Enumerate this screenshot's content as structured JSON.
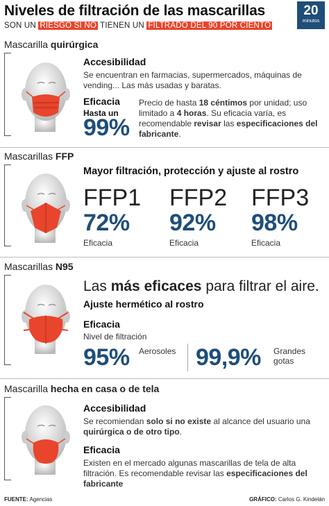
{
  "header": {
    "title": "Niveles de filtración de las mascarillas",
    "sub_pre": "SON UN ",
    "sub_hl1": "RIESGO SI NO",
    "sub_mid": " TIENEN UN ",
    "sub_hl2": "FILTRADO DEL 90 POR CIENTO",
    "logo_num": "20",
    "logo_txt": "minutos"
  },
  "colors": {
    "accent": "#e8452c",
    "brand": "#1f4e79"
  },
  "s1": {
    "label_a": "Mascarilla ",
    "label_b": "quirúrgica",
    "h_access": "Accesibilidad",
    "access_text": "Se encuentran en farmacias, supermercados, máquinas de vending... Las más usadas y baratas.",
    "h_efic": "Eficacia",
    "hasta": "Hasta un",
    "pct": "99%",
    "desc_a": "Precio de hasta ",
    "desc_b": "18 céntimos",
    "desc_c": " por unidad; uso limitado a ",
    "desc_d": "4 horas",
    "desc_e": ". Su eficacia varía, es recomendable ",
    "desc_f": "revisar",
    "desc_g": " las ",
    "desc_h": "especificaciones del fabricante",
    "desc_i": "."
  },
  "s2": {
    "label_a": "Mascarillas ",
    "label_b": "FFP",
    "heading": "Mayor filtración, protección y ajuste al rostro",
    "items": [
      {
        "name": "FFP1",
        "pct": "72%",
        "lbl": "Eficacia"
      },
      {
        "name": "FFP2",
        "pct": "92%",
        "lbl": "Eficacia"
      },
      {
        "name": "FFP3",
        "pct": "98%",
        "lbl": "Eficacia"
      }
    ]
  },
  "s3": {
    "label_a": "Mascarillas ",
    "label_b": "N95",
    "tag_a": "Las ",
    "tag_b": "más eficaces",
    "tag_c": " para filtrar el aire.",
    "h_ajuste": "Ajuste hermético al rostro",
    "h_efic": "Eficacia",
    "nivel": "Nivel de filtración",
    "pct1": "95%",
    "lbl1": "Aerosoles",
    "pct2": "99,9%",
    "lbl2a": "Grandes",
    "lbl2b": "gotas"
  },
  "s4": {
    "label_a": "Mascarilla ",
    "label_b": "hecha en casa o de tela",
    "h_access": "Accesibilidad",
    "acc_a": "Se recomiendan ",
    "acc_b": "solo si no existe",
    "acc_c": " al alcance del usuario una ",
    "acc_d": "quirúrgica o de otro tipo",
    "acc_e": ".",
    "h_efic": "Eficacia",
    "ef_a": "Existen en el mercado algunas mascarillas de tela de alta filtración. Es recomendable revisar las ",
    "ef_b": "especificaciones del fabricante"
  },
  "footer": {
    "src_lbl": "FUENTE:",
    "src_val": " Agencias",
    "gr_lbl": "GRÁFICO:",
    "gr_val": " Carlos G. Kindelán"
  }
}
